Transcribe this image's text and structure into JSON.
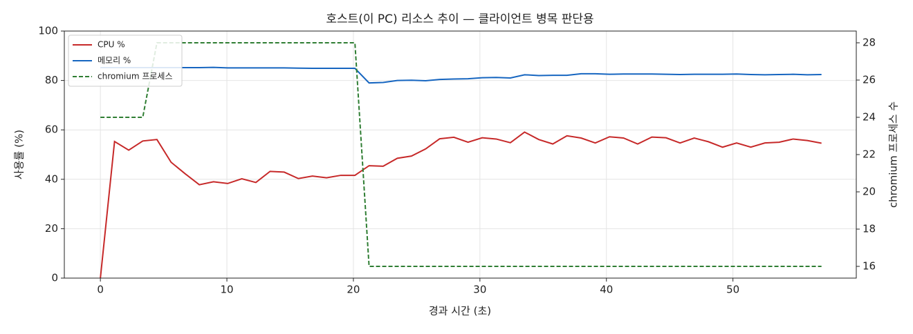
{
  "chart_data": {
    "type": "line",
    "title": "호스트(이 PC) 리소스 추이 — 클라이언트 병목 판단용",
    "x_label": "경과 시간 (초)",
    "y_label": "사용률 (%)",
    "y2_label": "chromium 프로세스 수",
    "x": [
      0,
      1.12,
      2.24,
      3.35,
      4.47,
      5.59,
      6.71,
      7.82,
      8.94,
      10.06,
      11.18,
      12.29,
      13.41,
      14.53,
      15.65,
      16.76,
      17.88,
      19.0,
      20.12,
      21.24,
      22.35,
      23.47,
      24.59,
      25.71,
      26.82,
      27.94,
      29.06,
      30.18,
      31.29,
      32.41,
      33.53,
      34.65,
      35.76,
      36.88,
      38.0,
      39.12,
      40.24,
      41.35,
      42.47,
      43.59,
      44.71,
      45.82,
      46.94,
      48.06,
      49.18,
      50.29,
      51.41,
      52.53,
      53.65,
      54.76,
      55.88,
      57.0
    ],
    "series": [
      {
        "name": "CPU %",
        "color": "#c62828",
        "dash": "solid",
        "values": [
          0,
          55.3,
          51.8,
          55.5,
          56.1,
          46.9,
          42.2,
          37.8,
          39.0,
          38.3,
          40.2,
          38.7,
          43.2,
          42.9,
          40.3,
          41.3,
          40.6,
          41.6,
          41.6,
          45.5,
          45.3,
          48.5,
          49.4,
          52.3,
          56.4,
          57.0,
          55.0,
          56.8,
          56.3,
          54.8,
          59.1,
          56.1,
          54.3,
          57.6,
          56.7,
          54.7,
          57.2,
          56.7,
          54.3,
          57.1,
          56.8,
          54.7,
          56.7,
          55.2,
          53.0,
          54.7,
          53.0,
          54.7,
          55.0,
          56.3,
          55.7,
          54.6
        ]
      },
      {
        "name": "메모리 %",
        "color": "#1565c0",
        "dash": "solid",
        "values": [
          85.2,
          85.2,
          85.2,
          85.2,
          85.2,
          85.2,
          85.2,
          85.2,
          85.3,
          85.1,
          85.1,
          85.1,
          85.1,
          85.1,
          85.0,
          84.9,
          84.9,
          84.9,
          84.9,
          79.0,
          79.2,
          80.0,
          80.1,
          79.9,
          80.4,
          80.6,
          80.7,
          81.1,
          81.2,
          81.0,
          82.3,
          82.0,
          82.1,
          82.1,
          82.7,
          82.7,
          82.5,
          82.6,
          82.6,
          82.6,
          82.5,
          82.4,
          82.5,
          82.5,
          82.5,
          82.6,
          82.4,
          82.3,
          82.4,
          82.5,
          82.3,
          82.4
        ]
      },
      {
        "name": "chromium 프로세스",
        "color": "#2e7d32",
        "dash": "dashed",
        "axis": "y2",
        "values": [
          24,
          24,
          24,
          24,
          28,
          28,
          28,
          28,
          28,
          28,
          28,
          28,
          28,
          28,
          28,
          28,
          28,
          28,
          28,
          16,
          16,
          16,
          16,
          16,
          16,
          16,
          16,
          16,
          16,
          16,
          16,
          16,
          16,
          16,
          16,
          16,
          16,
          16,
          16,
          16,
          16,
          16,
          16,
          16,
          16,
          16,
          16,
          16,
          16,
          16,
          16,
          16
        ]
      }
    ],
    "xlim": [
      -2.85,
      59.75
    ],
    "xticks": [
      0,
      10,
      20,
      30,
      40,
      50
    ],
    "ylim": [
      0,
      100
    ],
    "yticks": [
      0,
      20,
      40,
      60,
      80,
      100
    ],
    "y2lim": [
      15.37,
      28.63
    ],
    "y2ticks": [
      16,
      18,
      20,
      22,
      24,
      26,
      28
    ],
    "grid": true,
    "legend": "upper-left"
  }
}
